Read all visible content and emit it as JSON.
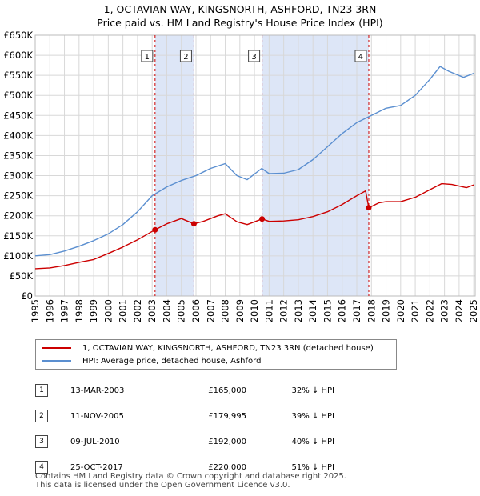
{
  "title_line1": "1, OCTAVIAN WAY, KINGSNORTH, ASHFORD, TN23 3RN",
  "title_line2": "Price paid vs. HM Land Registry's House Price Index (HPI)",
  "colors": {
    "price_paid": "#cc0000",
    "hpi": "#5b8fd0",
    "shade": "#dde6f7",
    "grid": "#d8d8d8",
    "marker_line": "#cc0000"
  },
  "chart_data": {
    "type": "line",
    "title": "Price paid vs. HM Land Registry's House Price Index (HPI)",
    "xlabel": "",
    "ylabel": "",
    "xlim": [
      1995,
      2025.1
    ],
    "ylim": [
      0,
      650000
    ],
    "x_ticks": [
      "1995",
      "1996",
      "1997",
      "1998",
      "1999",
      "2000",
      "2001",
      "2002",
      "2003",
      "2004",
      "2005",
      "2006",
      "2007",
      "2008",
      "2009",
      "2010",
      "2011",
      "2012",
      "2013",
      "2014",
      "2015",
      "2016",
      "2017",
      "2018",
      "2019",
      "2020",
      "2021",
      "2022",
      "2023",
      "2024",
      "2025"
    ],
    "y_ticks": [
      {
        "value": 0,
        "label": "£0"
      },
      {
        "value": 50000,
        "label": "£50K"
      },
      {
        "value": 100000,
        "label": "£100K"
      },
      {
        "value": 150000,
        "label": "£150K"
      },
      {
        "value": 200000,
        "label": "£200K"
      },
      {
        "value": 250000,
        "label": "£250K"
      },
      {
        "value": 300000,
        "label": "£300K"
      },
      {
        "value": 350000,
        "label": "£350K"
      },
      {
        "value": 400000,
        "label": "£400K"
      },
      {
        "value": 450000,
        "label": "£450K"
      },
      {
        "value": 500000,
        "label": "£500K"
      },
      {
        "value": 550000,
        "label": "£550K"
      },
      {
        "value": 600000,
        "label": "£600K"
      },
      {
        "value": 650000,
        "label": "£650K"
      }
    ],
    "grid": true,
    "shaded_spans": [
      [
        2003.2,
        2005.86
      ],
      [
        2010.52,
        2017.82
      ]
    ],
    "series": [
      {
        "name": "1, OCTAVIAN WAY, KINGSNORTH, ASHFORD, TN23 3RN (detached house)",
        "color": "#cc0000",
        "points": [
          [
            1995,
            68000
          ],
          [
            1996,
            70000
          ],
          [
            1997,
            76000
          ],
          [
            1998,
            84000
          ],
          [
            1999,
            91000
          ],
          [
            2000,
            106000
          ],
          [
            2001,
            122000
          ],
          [
            2002,
            140000
          ],
          [
            2003.2,
            165000
          ],
          [
            2004,
            180000
          ],
          [
            2005,
            193000
          ],
          [
            2005.86,
            179995
          ],
          [
            2006.5,
            186000
          ],
          [
            2007.5,
            200000
          ],
          [
            2008,
            205000
          ],
          [
            2008.8,
            185000
          ],
          [
            2009.5,
            178000
          ],
          [
            2010.52,
            192000
          ],
          [
            2011,
            186000
          ],
          [
            2012,
            187000
          ],
          [
            2013,
            190000
          ],
          [
            2014,
            198000
          ],
          [
            2015,
            210000
          ],
          [
            2016,
            228000
          ],
          [
            2017,
            250000
          ],
          [
            2017.6,
            262000
          ],
          [
            2017.82,
            220000
          ],
          [
            2018.5,
            232000
          ],
          [
            2019,
            235000
          ],
          [
            2020,
            235000
          ],
          [
            2021,
            246000
          ],
          [
            2022,
            265000
          ],
          [
            2022.8,
            280000
          ],
          [
            2023.5,
            278000
          ],
          [
            2024.5,
            270000
          ],
          [
            2025,
            277000
          ]
        ]
      },
      {
        "name": "HPI: Average price, detached house, Ashford",
        "color": "#5b8fd0",
        "points": [
          [
            1995,
            100000
          ],
          [
            1996,
            103000
          ],
          [
            1997,
            112000
          ],
          [
            1998,
            124000
          ],
          [
            1999,
            138000
          ],
          [
            2000,
            155000
          ],
          [
            2001,
            178000
          ],
          [
            2002,
            210000
          ],
          [
            2003,
            250000
          ],
          [
            2004,
            272000
          ],
          [
            2005,
            288000
          ],
          [
            2006,
            300000
          ],
          [
            2007,
            318000
          ],
          [
            2008,
            330000
          ],
          [
            2008.8,
            300000
          ],
          [
            2009.5,
            290000
          ],
          [
            2010.5,
            318000
          ],
          [
            2011,
            305000
          ],
          [
            2012,
            306000
          ],
          [
            2013,
            315000
          ],
          [
            2014,
            340000
          ],
          [
            2015,
            372000
          ],
          [
            2016,
            405000
          ],
          [
            2017,
            432000
          ],
          [
            2018,
            450000
          ],
          [
            2019,
            468000
          ],
          [
            2020,
            475000
          ],
          [
            2021,
            500000
          ],
          [
            2022,
            540000
          ],
          [
            2022.7,
            572000
          ],
          [
            2023.3,
            560000
          ],
          [
            2024.3,
            545000
          ],
          [
            2025,
            555000
          ]
        ]
      }
    ],
    "sales": [
      {
        "n": "1",
        "x": 2003.2,
        "price": 165000
      },
      {
        "n": "2",
        "x": 2005.86,
        "price": 179995
      },
      {
        "n": "3",
        "x": 2010.52,
        "price": 192000
      },
      {
        "n": "4",
        "x": 2017.82,
        "price": 220000
      }
    ]
  },
  "legend": {
    "price_paid_label": "1, OCTAVIAN WAY, KINGSNORTH, ASHFORD, TN23 3RN (detached house)",
    "hpi_label": "HPI: Average price, detached house, Ashford"
  },
  "sales_table": [
    {
      "n": "1",
      "date": "13-MAR-2003",
      "price": "£165,000",
      "hpi": "32% ↓ HPI"
    },
    {
      "n": "2",
      "date": "11-NOV-2005",
      "price": "£179,995",
      "hpi": "39% ↓ HPI"
    },
    {
      "n": "3",
      "date": "09-JUL-2010",
      "price": "£192,000",
      "hpi": "40% ↓ HPI"
    },
    {
      "n": "4",
      "date": "25-OCT-2017",
      "price": "£220,000",
      "hpi": "51% ↓ HPI"
    }
  ],
  "footer_line1": "Contains HM Land Registry data © Crown copyright and database right 2025.",
  "footer_line2": "This data is licensed under the Open Government Licence v3.0."
}
